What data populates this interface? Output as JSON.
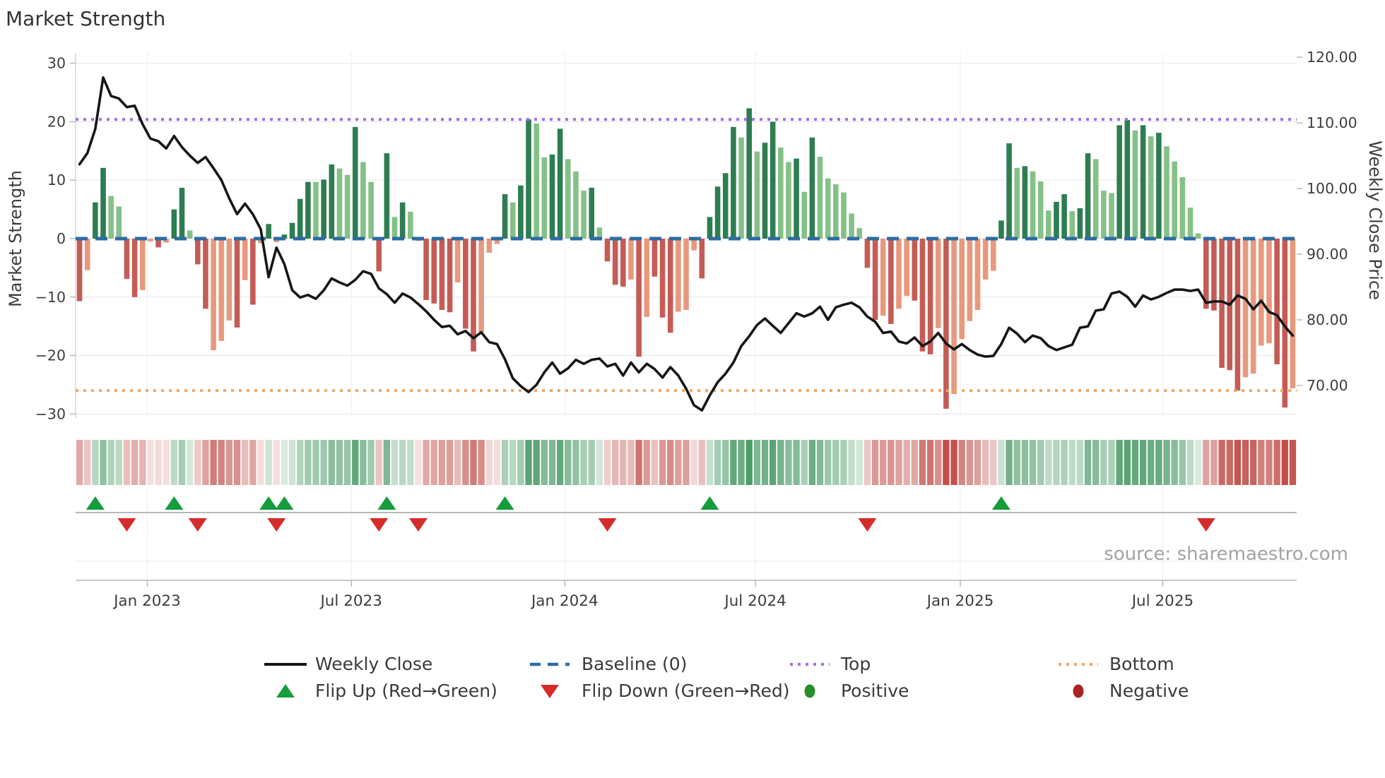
{
  "title": "Market Strength",
  "source": "source: sharemaestro.com",
  "colors": {
    "pos_dark": "#2e7d51",
    "pos_light": "#85c187",
    "neg_dark": "#c45c55",
    "neg_light": "#e8997d",
    "price_line": "#161616",
    "baseline": "#2d6ca2",
    "top_line": "#a470e8",
    "bottom_line": "#f2a566",
    "flip_up": "#159c3d",
    "flip_down": "#d62b2b",
    "positive_dot": "#2a8c2a",
    "negative_dot": "#aa2424",
    "strip_pos": "#2e8b50",
    "strip_neg": "#c2504a",
    "grid": "#e9e9f2",
    "grid_vertical": "#ededf4",
    "spine": "#cccccc",
    "marker_band_line": "#b8b8b8",
    "axis_line": "#c9c9c9"
  },
  "legend": {
    "rows": [
      [
        {
          "swatch": "line-black",
          "label": "Weekly Close"
        },
        {
          "swatch": "dash-blue",
          "label": "Baseline (0)"
        },
        {
          "swatch": "dot-purple",
          "label": "Top"
        },
        {
          "swatch": "dot-orange",
          "label": "Bottom"
        }
      ],
      [
        {
          "swatch": "triangle-up-green",
          "label": "Flip Up (Red→Green)"
        },
        {
          "swatch": "triangle-down-red",
          "label": "Flip Down (Green→Red)"
        },
        {
          "swatch": "circle-green",
          "label": "Positive"
        },
        {
          "swatch": "circle-red",
          "label": "Negative"
        }
      ]
    ]
  },
  "chart_data": {
    "type": "bar",
    "subtype": "weekly market-strength bars with overlaid weekly close price line, heatmap strip and flip markers",
    "title": "Market Strength",
    "x_axis": {
      "tick_labels": [
        "Jan 2023",
        "Jul 2023",
        "Jan 2024",
        "Jul 2024",
        "Jan 2025",
        "Jul 2025"
      ],
      "tick_weeks": [
        8.6,
        34.5,
        61.6,
        85.8,
        111.8,
        137.5
      ],
      "weeks_total": 155
    },
    "y_left": {
      "label": "Market Strength",
      "ticks": [
        30,
        20,
        10,
        0,
        -10,
        -20,
        -30
      ],
      "ylim": [
        -32,
        31
      ]
    },
    "y_right": {
      "label": "Weekly Close Price",
      "tick_labels": [
        "120.00",
        "110.00",
        "100.00",
        "90.00",
        "80.00",
        "70.00"
      ],
      "ticks": [
        120,
        110,
        100,
        90,
        80,
        70
      ]
    },
    "baseline": 0,
    "top_level": 20.4,
    "bottom_level": -26.0,
    "strength": {
      "values": [
        -10.7,
        -5.4,
        6.2,
        12.1,
        7.3,
        5.5,
        -6.9,
        -10,
        -8.8,
        -0.5,
        -1.5,
        -0.7,
        5,
        8.7,
        1.4,
        -4.4,
        -12,
        -19.1,
        -17.5,
        -14,
        -15.2,
        -7.1,
        -11.3,
        -0.8,
        2.5,
        -0.6,
        0.7,
        2.7,
        6.8,
        9.7,
        9.7,
        10.1,
        12.7,
        12,
        10.9,
        19.1,
        13.1,
        9.7,
        -5.6,
        14.6,
        3.7,
        6.2,
        4.6,
        -0.4,
        -10.5,
        -11.1,
        -12.2,
        -12.6,
        -7.5,
        -15.4,
        -19.3,
        -16,
        -2.4,
        -0.9,
        7.6,
        6.2,
        9.1,
        20.4,
        19.7,
        13.9,
        14.4,
        18.8,
        13.6,
        11.5,
        8.2,
        8.7,
        1.9,
        -3.9,
        -7.9,
        -8.2,
        -7,
        -20.2,
        -13.4,
        -6.5,
        -13.5,
        -16.1,
        -12.5,
        -12.2,
        -2,
        -6.8,
        3.7,
        8.9,
        11.2,
        19.1,
        17.3,
        22.3,
        14.9,
        16.4,
        20,
        15.6,
        13.1,
        13.7,
        8,
        17.3,
        14,
        10.3,
        9.3,
        7.9,
        4.3,
        1.8,
        -5,
        -13.9,
        -13.2,
        -14.6,
        -12,
        -9.8,
        -10.6,
        -19.3,
        -19.8,
        -15.3,
        -29.1,
        -26.6,
        -17.2,
        -14.1,
        -12.2,
        -7,
        -5.5,
        3.1,
        16.3,
        12.1,
        12.4,
        11.5,
        9.8,
        4.8,
        6.3,
        7.6,
        4.7,
        5.2,
        14.6,
        13.6,
        8.2,
        7.8,
        19.4,
        20.3,
        18.5,
        19.4,
        17.5,
        18.1,
        15.8,
        13.2,
        10.5,
        5.3,
        0.9,
        -12,
        -12.3,
        -22.1,
        -22.5,
        -26,
        -23.7,
        -23.1,
        -18.3,
        -17.9,
        -21.5,
        -28.9,
        -25.6
      ],
      "shades": "DLDDLLDDLLDLDDLDDLLLDLDLDLDDDDLDDLLDLLDDLDLLDDDDLDDLLLDLDDLLDDLLLDLDDDLDLDDDLLLDDDDDLDLDDLLDLDLLLLLLDDLDLLDDDLDLLLLLLDDLDLLLDDLDDLLLDDLDLDLLLLLDDDDDLLLLDDL"
    },
    "weekly_close": [
      103.7,
      105.4,
      109.1,
      116.9,
      114.1,
      113.7,
      112.4,
      112.6,
      109.8,
      107.6,
      107.2,
      106.1,
      108,
      106.3,
      105,
      103.9,
      104.8,
      103.1,
      101.3,
      98.5,
      96.1,
      97.7,
      96.1,
      93.8,
      86.5,
      91,
      88.5,
      84.5,
      83.4,
      83.8,
      83.2,
      84.5,
      86.3,
      85.7,
      85.2,
      86.1,
      87.4,
      87,
      84.8,
      83.9,
      82.6,
      84,
      83.4,
      82.4,
      81.3,
      80,
      78.9,
      79.1,
      77.8,
      78.3,
      77.2,
      78.1,
      76.6,
      76.3,
      74,
      71.1,
      69.9,
      69,
      70.1,
      72,
      73.5,
      71.8,
      72.6,
      73.9,
      73.3,
      73.9,
      74.1,
      72.9,
      73.3,
      71.5,
      73.5,
      72,
      73.3,
      72.5,
      71.2,
      72.8,
      71.5,
      69.5,
      67,
      66.2,
      68.5,
      70.5,
      71.8,
      73.5,
      76,
      77.5,
      79.2,
      80.2,
      79.1,
      78,
      79.5,
      81,
      80.5,
      81,
      82,
      80,
      81.9,
      82.3,
      82.6,
      81.9,
      80.5,
      79.7,
      78,
      78.2,
      76.7,
      76.4,
      77.3,
      76,
      76.7,
      78,
      76.4,
      75.5,
      76.3,
      75.4,
      74.7,
      74.4,
      74.5,
      76.3,
      78.8,
      77.9,
      76.6,
      77.6,
      77.2,
      76,
      75.4,
      75.8,
      76.2,
      78.8,
      79,
      81.4,
      81.6,
      84,
      84.3,
      83.5,
      82,
      83.7,
      83.1,
      83.5,
      84.1,
      84.6,
      84.6,
      84.4,
      84.6,
      82.6,
      82.8,
      82.8,
      82.3,
      83.7,
      83.2,
      81.6,
      82.9,
      81.2,
      80.7,
      79,
      77.6
    ],
    "flip_up_weeks": [
      2,
      12,
      24,
      26,
      39,
      54,
      80,
      117
    ],
    "flip_down_weeks": [
      6,
      15,
      25,
      38,
      43,
      67,
      100,
      143
    ],
    "legend_position": "bottom"
  }
}
